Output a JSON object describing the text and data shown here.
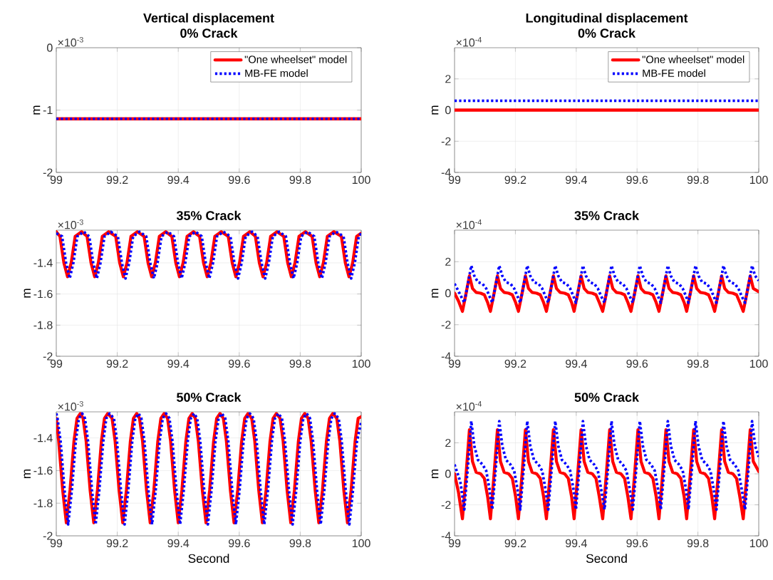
{
  "chart_data": [
    {
      "type": "line",
      "title": "Vertical displacement",
      "subtitle": "0% Crack",
      "ylabel": "m",
      "annotations": [
        "×10$^{-3}$"
      ],
      "xlim": [
        99,
        100
      ],
      "xticks": [
        99,
        99.2,
        99.4,
        99.6,
        99.8,
        100
      ],
      "ylim": [
        -2,
        0
      ],
      "yticks": [
        -2,
        -1,
        0
      ],
      "grid": true,
      "legend": "top right",
      "series": [
        {
          "name": "\"One wheelset\" model",
          "color": "#ff0000",
          "line_style": "solid",
          "x": [
            99,
            100
          ],
          "values": [
            -1.14,
            -1.14
          ]
        },
        {
          "name": "MB-FE model",
          "color": "#0000ff",
          "line_style": "dotted",
          "x": [
            99,
            100
          ],
          "values": [
            -1.14,
            -1.14
          ]
        }
      ]
    },
    {
      "type": "line",
      "title": "Longitudinal displacement",
      "subtitle": "0% Crack",
      "ylabel": "m",
      "annotations": [
        "×10$^{-4}$"
      ],
      "xlim": [
        99,
        100
      ],
      "xticks": [
        99,
        99.2,
        99.4,
        99.6,
        99.8,
        100
      ],
      "ylim": [
        -4,
        4
      ],
      "yticks": [
        -4,
        -2,
        0,
        2
      ],
      "grid": true,
      "legend": "top right",
      "series": [
        {
          "name": "\"One wheelset\" model",
          "color": "#ff0000",
          "line_style": "solid",
          "x": [
            99,
            100
          ],
          "values": [
            0.0,
            0.0
          ]
        },
        {
          "name": "MB-FE model",
          "color": "#0000ff",
          "line_style": "dotted",
          "x": [
            99,
            100
          ],
          "values": [
            0.6,
            0.6
          ]
        }
      ]
    },
    {
      "type": "line",
      "title": "35% Crack",
      "ylabel": "m",
      "annotations": [
        "×10$^{-3}$"
      ],
      "xlim": [
        99,
        100
      ],
      "xticks": [
        99,
        99.2,
        99.4,
        99.6,
        99.8,
        100
      ],
      "ylim": [
        -2,
        -1.19
      ],
      "yticks": [
        -2,
        -1.8,
        -1.6,
        -1.4
      ],
      "grid": true,
      "series": [
        {
          "color": "#ff0000",
          "line_style": "solid",
          "x": [
            99.0,
            99.012,
            99.025,
            99.037,
            99.049,
            99.062,
            99.083,
            99.101,
            99.114,
            99.126,
            99.138,
            99.151,
            99.172,
            99.195,
            99.208,
            99.22,
            99.232,
            99.245,
            99.266,
            99.288,
            99.301,
            99.313,
            99.325,
            99.338,
            99.359,
            99.379,
            99.392,
            99.404,
            99.416,
            99.429,
            99.45,
            99.47,
            99.483,
            99.495,
            99.507,
            99.52,
            99.541,
            99.564,
            99.577,
            99.589,
            99.601,
            99.614,
            99.635,
            99.653,
            99.666,
            99.678,
            99.69,
            99.703,
            99.724,
            99.746,
            99.759,
            99.771,
            99.783,
            99.796,
            99.817,
            99.839,
            99.852,
            99.864,
            99.876,
            99.889,
            99.91,
            99.935,
            99.948,
            99.96,
            99.972,
            99.985,
            100.0
          ],
          "values": [
            -1.2,
            -1.23,
            -1.4,
            -1.49,
            -1.4,
            -1.23,
            -1.2,
            -1.23,
            -1.4,
            -1.49,
            -1.4,
            -1.23,
            -1.2,
            -1.23,
            -1.4,
            -1.49,
            -1.4,
            -1.23,
            -1.2,
            -1.23,
            -1.4,
            -1.49,
            -1.4,
            -1.23,
            -1.2,
            -1.23,
            -1.4,
            -1.49,
            -1.4,
            -1.23,
            -1.2,
            -1.23,
            -1.4,
            -1.49,
            -1.4,
            -1.23,
            -1.2,
            -1.23,
            -1.4,
            -1.49,
            -1.4,
            -1.23,
            -1.2,
            -1.23,
            -1.4,
            -1.49,
            -1.4,
            -1.23,
            -1.2,
            -1.23,
            -1.4,
            -1.49,
            -1.4,
            -1.23,
            -1.2,
            -1.23,
            -1.4,
            -1.49,
            -1.4,
            -1.23,
            -1.2,
            -1.23,
            -1.4,
            -1.49,
            -1.4,
            -1.23,
            -1.21
          ]
        },
        {
          "color": "#0000ff",
          "line_style": "dotted",
          "x": [
            99.0,
            99.019,
            99.032,
            99.044,
            99.056,
            99.069,
            99.09,
            99.108,
            99.121,
            99.133,
            99.145,
            99.158,
            99.179,
            99.202,
            99.215,
            99.227,
            99.239,
            99.252,
            99.273,
            99.295,
            99.308,
            99.32,
            99.332,
            99.345,
            99.366,
            99.386,
            99.399,
            99.411,
            99.423,
            99.436,
            99.457,
            99.477,
            99.49,
            99.502,
            99.514,
            99.527,
            99.548,
            99.571,
            99.584,
            99.596,
            99.608,
            99.621,
            99.642,
            99.66,
            99.673,
            99.685,
            99.697,
            99.71,
            99.731,
            99.753,
            99.766,
            99.778,
            99.79,
            99.803,
            99.824,
            99.846,
            99.859,
            99.871,
            99.883,
            99.896,
            99.917,
            99.942,
            99.955,
            99.967,
            99.979,
            99.992,
            100.0
          ],
          "values": [
            -1.21,
            -1.23,
            -1.4,
            -1.5,
            -1.4,
            -1.23,
            -1.2,
            -1.23,
            -1.4,
            -1.5,
            -1.4,
            -1.23,
            -1.2,
            -1.23,
            -1.4,
            -1.5,
            -1.4,
            -1.23,
            -1.2,
            -1.23,
            -1.4,
            -1.5,
            -1.4,
            -1.23,
            -1.2,
            -1.23,
            -1.4,
            -1.5,
            -1.4,
            -1.23,
            -1.2,
            -1.23,
            -1.4,
            -1.5,
            -1.4,
            -1.23,
            -1.2,
            -1.23,
            -1.4,
            -1.5,
            -1.4,
            -1.23,
            -1.2,
            -1.23,
            -1.4,
            -1.5,
            -1.4,
            -1.23,
            -1.2,
            -1.23,
            -1.4,
            -1.5,
            -1.4,
            -1.23,
            -1.2,
            -1.23,
            -1.4,
            -1.5,
            -1.4,
            -1.23,
            -1.2,
            -1.23,
            -1.4,
            -1.5,
            -1.4,
            -1.23,
            -1.21
          ]
        }
      ]
    },
    {
      "type": "line",
      "title": "35% Crack",
      "ylabel": "m",
      "annotations": [
        "×10$^{-4}$"
      ],
      "xlim": [
        99,
        100
      ],
      "xticks": [
        99,
        99.2,
        99.4,
        99.6,
        99.8,
        100
      ],
      "ylim": [
        -4,
        4
      ],
      "yticks": [
        -4,
        -2,
        0,
        2
      ],
      "grid": true,
      "series": [
        {
          "color": "#ff0000",
          "line_style": "solid",
          "x": [
            99.0,
            99.013,
            99.026,
            99.038,
            99.049,
            99.059,
            99.071,
            99.086,
            99.098,
            99.109,
            99.118,
            99.13,
            99.141,
            99.151,
            99.163,
            99.178,
            99.19,
            99.201,
            99.21,
            99.222,
            99.233,
            99.243,
            99.255,
            99.27,
            99.282,
            99.293,
            99.302,
            99.314,
            99.325,
            99.335,
            99.347,
            99.362,
            99.374,
            99.385,
            99.393,
            99.405,
            99.416,
            99.426,
            99.438,
            99.453,
            99.465,
            99.476,
            99.487,
            99.499,
            99.51,
            99.52,
            99.532,
            99.547,
            99.559,
            99.57,
            99.58,
            99.592,
            99.603,
            99.613,
            99.625,
            99.64,
            99.652,
            99.663,
            99.672,
            99.684,
            99.695,
            99.705,
            99.717,
            99.732,
            99.744,
            99.755,
            99.763,
            99.775,
            99.786,
            99.796,
            99.808,
            99.823,
            99.835,
            99.846,
            99.855,
            99.867,
            99.878,
            99.888,
            99.9,
            99.915,
            99.927,
            99.938,
            99.949,
            99.961,
            99.972,
            99.982,
            100.0
          ],
          "values": [
            0.0,
            -0.5,
            -1.15,
            0.0,
            1.1,
            0.3,
            0.05,
            0.0,
            -0.1,
            -0.6,
            -1.15,
            0.0,
            1.1,
            0.3,
            0.05,
            0.0,
            -0.1,
            -0.6,
            -1.15,
            0.0,
            1.1,
            0.3,
            0.05,
            0.0,
            -0.1,
            -0.6,
            -1.15,
            0.0,
            1.1,
            0.3,
            0.05,
            0.0,
            -0.1,
            -0.6,
            -1.15,
            0.0,
            1.1,
            0.3,
            0.05,
            0.0,
            -0.1,
            -0.6,
            -1.15,
            0.0,
            1.1,
            0.3,
            0.05,
            0.0,
            -0.1,
            -0.6,
            -1.15,
            0.0,
            1.1,
            0.3,
            0.05,
            0.0,
            -0.1,
            -0.6,
            -1.15,
            0.0,
            1.1,
            0.3,
            0.05,
            0.0,
            -0.1,
            -0.6,
            -1.15,
            0.0,
            1.1,
            0.3,
            0.05,
            0.0,
            -0.1,
            -0.6,
            -1.15,
            0.0,
            1.1,
            0.3,
            0.05,
            0.0,
            -0.1,
            -0.6,
            -1.15,
            0.0,
            1.1,
            0.3,
            0.1
          ]
        },
        {
          "color": "#0000ff",
          "line_style": "dotted",
          "x": [
            99.0,
            99.019,
            99.032,
            99.044,
            99.055,
            99.065,
            99.077,
            99.092,
            99.104,
            99.115,
            99.124,
            99.136,
            99.147,
            99.157,
            99.169,
            99.184,
            99.196,
            99.207,
            99.216,
            99.228,
            99.239,
            99.249,
            99.261,
            99.276,
            99.288,
            99.299,
            99.308,
            99.32,
            99.331,
            99.341,
            99.353,
            99.368,
            99.38,
            99.391,
            99.399,
            99.411,
            99.422,
            99.432,
            99.444,
            99.459,
            99.471,
            99.482,
            99.493,
            99.505,
            99.516,
            99.526,
            99.538,
            99.553,
            99.565,
            99.576,
            99.586,
            99.598,
            99.609,
            99.619,
            99.631,
            99.646,
            99.658,
            99.669,
            99.678,
            99.69,
            99.701,
            99.711,
            99.723,
            99.738,
            99.75,
            99.761,
            99.769,
            99.781,
            99.792,
            99.802,
            99.814,
            99.829,
            99.841,
            99.852,
            99.861,
            99.873,
            99.884,
            99.894,
            99.906,
            99.921,
            99.933,
            99.944,
            99.955,
            99.967,
            99.978,
            99.988,
            100.0
          ],
          "values": [
            0.6,
            -0.1,
            -0.6,
            0.6,
            1.75,
            1.1,
            0.7,
            0.6,
            0.3,
            -0.2,
            -0.6,
            0.6,
            1.75,
            1.1,
            0.7,
            0.6,
            0.3,
            -0.2,
            -0.6,
            0.6,
            1.75,
            1.1,
            0.7,
            0.6,
            0.3,
            -0.2,
            -0.6,
            0.6,
            1.75,
            1.1,
            0.7,
            0.6,
            0.3,
            -0.2,
            -0.6,
            0.6,
            1.75,
            1.1,
            0.7,
            0.6,
            0.3,
            -0.2,
            -0.6,
            0.6,
            1.75,
            1.1,
            0.7,
            0.6,
            0.3,
            -0.2,
            -0.6,
            0.6,
            1.75,
            1.1,
            0.7,
            0.6,
            0.3,
            -0.2,
            -0.6,
            0.6,
            1.75,
            1.1,
            0.7,
            0.6,
            0.3,
            -0.2,
            -0.6,
            0.6,
            1.75,
            1.1,
            0.7,
            0.6,
            0.3,
            -0.2,
            -0.6,
            0.6,
            1.75,
            1.1,
            0.7,
            0.6,
            0.3,
            -0.2,
            -0.6,
            0.6,
            1.75,
            1.1,
            0.8
          ]
        }
      ]
    },
    {
      "type": "line",
      "title": "50% Crack",
      "xlabel": "Second",
      "ylabel": "m",
      "annotations": [
        "×10$^{-3}$"
      ],
      "xlim": [
        99,
        100
      ],
      "xticks": [
        99,
        99.2,
        99.4,
        99.6,
        99.8,
        100
      ],
      "ylim": [
        -2,
        -1.24
      ],
      "yticks": [
        -2,
        -1.8,
        -1.6,
        -1.4
      ],
      "grid": true,
      "series": [
        {
          "color": "#ff0000",
          "line_style": "solid",
          "x": [
            99.0,
            99.008,
            99.021,
            99.033,
            99.045,
            99.058,
            99.068,
            99.079,
            99.088,
            99.098,
            99.111,
            99.123,
            99.135,
            99.148,
            99.158,
            99.169,
            99.183,
            99.193,
            99.206,
            99.218,
            99.23,
            99.243,
            99.253,
            99.264,
            99.273,
            99.283,
            99.296,
            99.308,
            99.32,
            99.333,
            99.343,
            99.354,
            99.365,
            99.375,
            99.388,
            99.4,
            99.412,
            99.425,
            99.435,
            99.446,
            99.456,
            99.466,
            99.479,
            99.491,
            99.503,
            99.516,
            99.526,
            99.537,
            99.548,
            99.558,
            99.571,
            99.583,
            99.595,
            99.608,
            99.618,
            99.629,
            99.641,
            99.651,
            99.664,
            99.676,
            99.688,
            99.701,
            99.711,
            99.722,
            99.734,
            99.744,
            99.757,
            99.769,
            99.781,
            99.794,
            99.804,
            99.815,
            99.826,
            99.836,
            99.849,
            99.861,
            99.873,
            99.886,
            99.896,
            99.907,
            99.92,
            99.93,
            99.943,
            99.955,
            99.967,
            99.98,
            99.99,
            100.0
          ],
          "values": [
            -1.28,
            -1.42,
            -1.72,
            -1.92,
            -1.72,
            -1.42,
            -1.28,
            -1.25,
            -1.28,
            -1.42,
            -1.72,
            -1.92,
            -1.72,
            -1.42,
            -1.28,
            -1.25,
            -1.28,
            -1.42,
            -1.72,
            -1.92,
            -1.72,
            -1.42,
            -1.28,
            -1.25,
            -1.28,
            -1.42,
            -1.72,
            -1.92,
            -1.72,
            -1.42,
            -1.28,
            -1.25,
            -1.28,
            -1.42,
            -1.72,
            -1.92,
            -1.72,
            -1.42,
            -1.28,
            -1.25,
            -1.28,
            -1.42,
            -1.72,
            -1.92,
            -1.72,
            -1.42,
            -1.28,
            -1.25,
            -1.28,
            -1.42,
            -1.72,
            -1.92,
            -1.72,
            -1.42,
            -1.28,
            -1.25,
            -1.28,
            -1.42,
            -1.72,
            -1.92,
            -1.72,
            -1.42,
            -1.28,
            -1.25,
            -1.28,
            -1.42,
            -1.72,
            -1.92,
            -1.72,
            -1.42,
            -1.28,
            -1.25,
            -1.28,
            -1.42,
            -1.72,
            -1.92,
            -1.72,
            -1.42,
            -1.28,
            -1.25,
            -1.28,
            -1.42,
            -1.72,
            -1.92,
            -1.72,
            -1.42,
            -1.28,
            -1.27
          ]
        },
        {
          "color": "#0000ff",
          "line_style": "dotted",
          "x": [
            99.0,
            99.004,
            99.014,
            99.027,
            99.039,
            99.051,
            99.064,
            99.074,
            99.085,
            99.094,
            99.104,
            99.117,
            99.129,
            99.141,
            99.154,
            99.164,
            99.175,
            99.189,
            99.199,
            99.212,
            99.224,
            99.236,
            99.249,
            99.259,
            99.27,
            99.279,
            99.289,
            99.302,
            99.314,
            99.326,
            99.339,
            99.349,
            99.36,
            99.371,
            99.381,
            99.394,
            99.406,
            99.418,
            99.431,
            99.441,
            99.452,
            99.462,
            99.472,
            99.485,
            99.497,
            99.509,
            99.522,
            99.532,
            99.543,
            99.554,
            99.564,
            99.577,
            99.589,
            99.601,
            99.614,
            99.624,
            99.635,
            99.647,
            99.657,
            99.67,
            99.682,
            99.694,
            99.707,
            99.717,
            99.728,
            99.74,
            99.75,
            99.763,
            99.775,
            99.787,
            99.8,
            99.81,
            99.821,
            99.832,
            99.842,
            99.855,
            99.867,
            99.879,
            99.892,
            99.902,
            99.913,
            99.926,
            99.936,
            99.949,
            99.961,
            99.973,
            99.986,
            100.0
          ],
          "values": [
            -1.25,
            -1.28,
            -1.42,
            -1.72,
            -1.93,
            -1.72,
            -1.42,
            -1.28,
            -1.25,
            -1.28,
            -1.42,
            -1.72,
            -1.93,
            -1.72,
            -1.42,
            -1.28,
            -1.25,
            -1.28,
            -1.42,
            -1.72,
            -1.93,
            -1.72,
            -1.42,
            -1.28,
            -1.25,
            -1.28,
            -1.42,
            -1.72,
            -1.93,
            -1.72,
            -1.42,
            -1.28,
            -1.25,
            -1.28,
            -1.42,
            -1.72,
            -1.93,
            -1.72,
            -1.42,
            -1.28,
            -1.25,
            -1.28,
            -1.42,
            -1.72,
            -1.93,
            -1.72,
            -1.42,
            -1.28,
            -1.25,
            -1.28,
            -1.42,
            -1.72,
            -1.93,
            -1.72,
            -1.42,
            -1.28,
            -1.25,
            -1.28,
            -1.42,
            -1.72,
            -1.93,
            -1.72,
            -1.42,
            -1.28,
            -1.25,
            -1.28,
            -1.42,
            -1.72,
            -1.93,
            -1.72,
            -1.42,
            -1.28,
            -1.25,
            -1.28,
            -1.42,
            -1.72,
            -1.93,
            -1.72,
            -1.42,
            -1.28,
            -1.25,
            -1.28,
            -1.42,
            -1.72,
            -1.93,
            -1.72,
            -1.42,
            -1.3
          ]
        }
      ]
    },
    {
      "type": "line",
      "title": "50% Crack",
      "xlabel": "Second",
      "ylabel": "m",
      "annotations": [
        "×10$^{-4}$"
      ],
      "xlim": [
        99,
        100
      ],
      "xticks": [
        99,
        99.2,
        99.4,
        99.6,
        99.8,
        100
      ],
      "ylim": [
        -4,
        4
      ],
      "yticks": [
        -4,
        -2,
        0,
        2
      ],
      "grid": true,
      "series": [
        {
          "color": "#ff0000",
          "line_style": "solid",
          "x": [
            99.0,
            99.013,
            99.026,
            99.038,
            99.049,
            99.059,
            99.071,
            99.086,
            99.098,
            99.109,
            99.118,
            99.13,
            99.141,
            99.151,
            99.163,
            99.178,
            99.19,
            99.201,
            99.21,
            99.222,
            99.233,
            99.243,
            99.255,
            99.27,
            99.282,
            99.293,
            99.302,
            99.314,
            99.325,
            99.335,
            99.347,
            99.362,
            99.374,
            99.385,
            99.393,
            99.405,
            99.416,
            99.426,
            99.438,
            99.453,
            99.465,
            99.476,
            99.487,
            99.499,
            99.51,
            99.52,
            99.532,
            99.547,
            99.559,
            99.57,
            99.58,
            99.592,
            99.603,
            99.613,
            99.625,
            99.64,
            99.652,
            99.663,
            99.672,
            99.684,
            99.695,
            99.705,
            99.717,
            99.732,
            99.744,
            99.755,
            99.763,
            99.775,
            99.786,
            99.796,
            99.808,
            99.823,
            99.835,
            99.846,
            99.855,
            99.867,
            99.878,
            99.888,
            99.9,
            99.915,
            99.927,
            99.938,
            99.949,
            99.961,
            99.972,
            99.982,
            100.0
          ],
          "values": [
            0.0,
            -1.2,
            -2.9,
            0.0,
            2.85,
            0.8,
            0.1,
            0.0,
            -0.3,
            -1.5,
            -2.9,
            0.0,
            2.85,
            0.8,
            0.1,
            0.0,
            -0.3,
            -1.5,
            -2.9,
            0.0,
            2.85,
            0.8,
            0.1,
            0.0,
            -0.3,
            -1.5,
            -2.9,
            0.0,
            2.85,
            0.8,
            0.1,
            0.0,
            -0.3,
            -1.5,
            -2.9,
            0.0,
            2.85,
            0.8,
            0.1,
            0.0,
            -0.3,
            -1.5,
            -2.9,
            0.0,
            2.85,
            0.8,
            0.1,
            0.0,
            -0.3,
            -1.5,
            -2.9,
            0.0,
            2.85,
            0.8,
            0.1,
            0.0,
            -0.3,
            -1.5,
            -2.9,
            0.0,
            2.85,
            0.8,
            0.1,
            0.0,
            -0.3,
            -1.5,
            -2.9,
            0.0,
            2.85,
            0.8,
            0.1,
            0.0,
            -0.3,
            -1.5,
            -2.9,
            0.0,
            2.85,
            0.8,
            0.1,
            0.0,
            -0.3,
            -1.5,
            -2.9,
            0.0,
            2.85,
            0.8,
            0.15
          ]
        },
        {
          "color": "#0000ff",
          "line_style": "dotted",
          "x": [
            99.0,
            99.019,
            99.032,
            99.044,
            99.055,
            99.065,
            99.077,
            99.092,
            99.104,
            99.115,
            99.124,
            99.136,
            99.147,
            99.157,
            99.169,
            99.184,
            99.196,
            99.207,
            99.216,
            99.228,
            99.239,
            99.249,
            99.261,
            99.276,
            99.288,
            99.299,
            99.308,
            99.32,
            99.331,
            99.341,
            99.353,
            99.368,
            99.38,
            99.391,
            99.399,
            99.411,
            99.422,
            99.432,
            99.444,
            99.459,
            99.471,
            99.482,
            99.493,
            99.505,
            99.516,
            99.526,
            99.538,
            99.553,
            99.565,
            99.576,
            99.586,
            99.598,
            99.609,
            99.619,
            99.631,
            99.646,
            99.658,
            99.669,
            99.678,
            99.69,
            99.701,
            99.711,
            99.723,
            99.738,
            99.75,
            99.761,
            99.769,
            99.781,
            99.792,
            99.802,
            99.814,
            99.829,
            99.841,
            99.852,
            99.861,
            99.873,
            99.884,
            99.894,
            99.906,
            99.921,
            99.933,
            99.944,
            99.955,
            99.967,
            99.978,
            99.988,
            100.0
          ],
          "values": [
            0.6,
            -0.5,
            -2.3,
            0.5,
            3.4,
            1.8,
            0.9,
            0.6,
            0.2,
            -1.0,
            -2.3,
            0.5,
            3.4,
            1.8,
            0.9,
            0.6,
            0.2,
            -1.0,
            -2.3,
            0.5,
            3.4,
            1.8,
            0.9,
            0.6,
            0.2,
            -1.0,
            -2.3,
            0.5,
            3.4,
            1.8,
            0.9,
            0.6,
            0.2,
            -1.0,
            -2.3,
            0.5,
            3.4,
            1.8,
            0.9,
            0.6,
            0.2,
            -1.0,
            -2.3,
            0.5,
            3.4,
            1.8,
            0.9,
            0.6,
            0.2,
            -1.0,
            -2.3,
            0.5,
            3.4,
            1.8,
            0.9,
            0.6,
            0.2,
            -1.0,
            -2.3,
            0.5,
            3.4,
            1.8,
            0.9,
            0.6,
            0.2,
            -1.0,
            -2.3,
            0.5,
            3.4,
            1.8,
            0.9,
            0.6,
            0.2,
            -1.0,
            -2.3,
            0.5,
            3.4,
            1.8,
            0.9,
            0.6,
            0.2,
            -1.0,
            -2.3,
            0.5,
            3.4,
            1.8,
            1.1
          ]
        }
      ]
    }
  ]
}
